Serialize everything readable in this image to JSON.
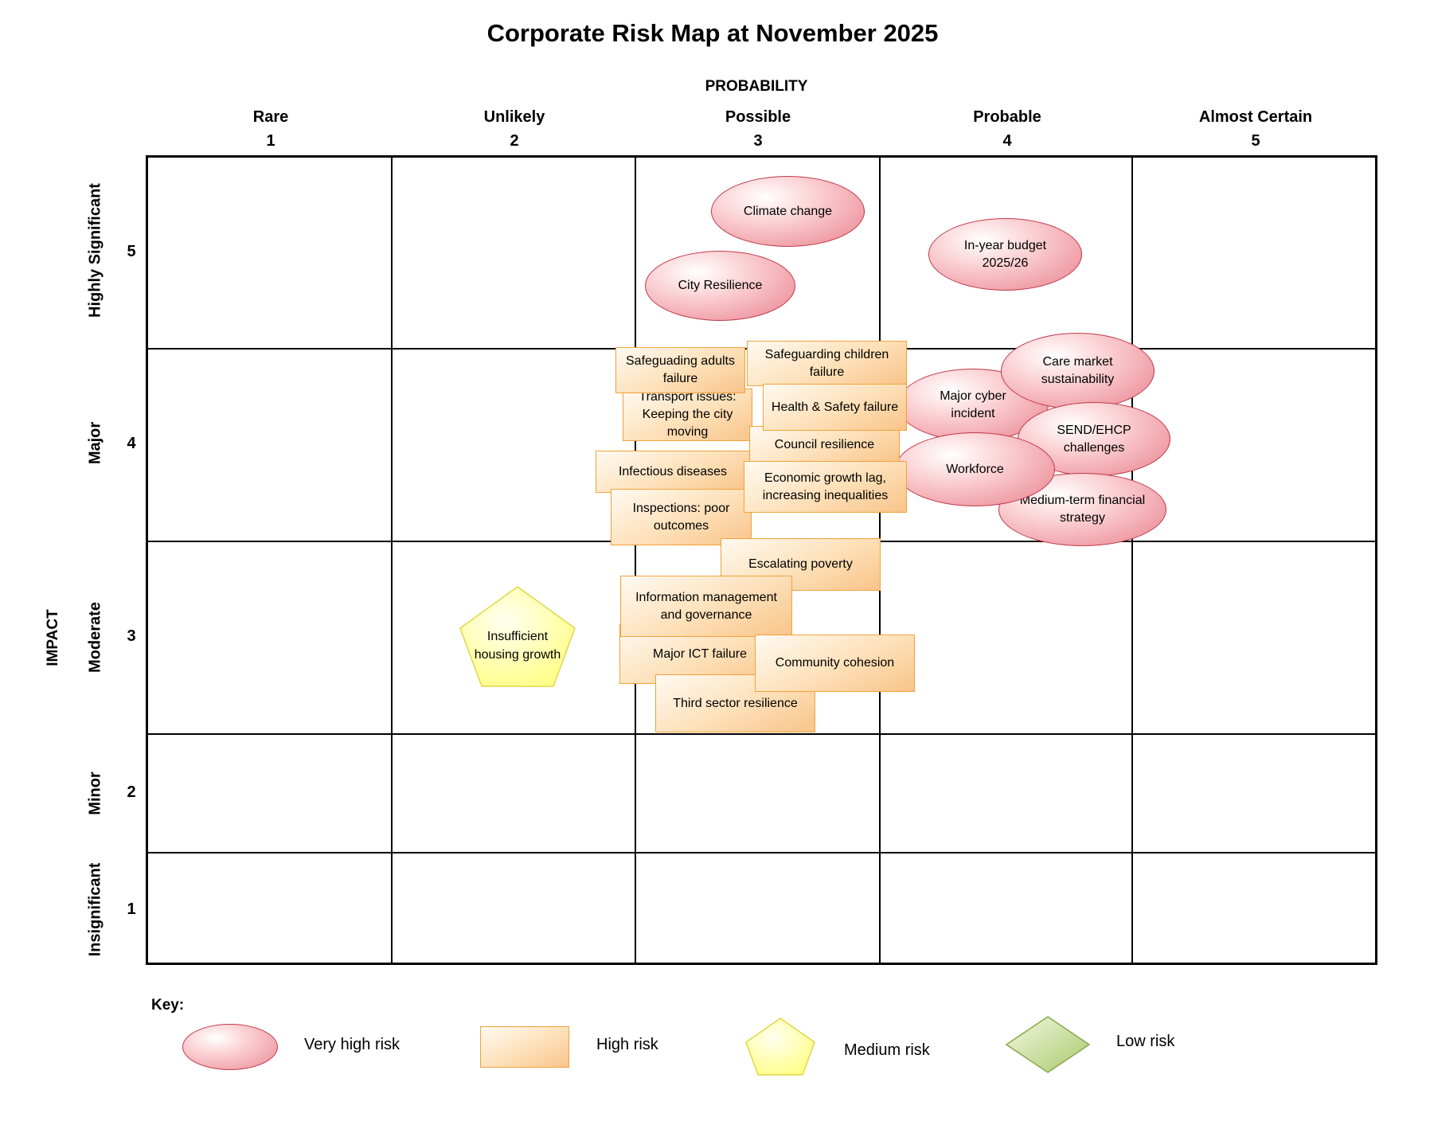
{
  "title": "Corporate Risk Map at November 2025",
  "axis": {
    "probability_label": "PROBABILITY",
    "impact_label": "IMPACT",
    "columns": [
      {
        "name": "Rare",
        "num": "1"
      },
      {
        "name": "Unlikely",
        "num": "2"
      },
      {
        "name": "Possible",
        "num": "3"
      },
      {
        "name": "Probable",
        "num": "4"
      },
      {
        "name": "Almost Certain",
        "num": "5"
      }
    ],
    "rows": [
      {
        "name": "Highly Significant",
        "num": "5"
      },
      {
        "name": "Major",
        "num": "4"
      },
      {
        "name": "Moderate",
        "num": "3"
      },
      {
        "name": "Minor",
        "num": "2"
      },
      {
        "name": "Insignificant",
        "num": "1"
      }
    ]
  },
  "risks": {
    "climate_change": "Climate change",
    "in_year_budget": "In-year budget 2025/26",
    "city_resilience": "City Resilience",
    "safeguarding_adults": "Safeguading adults failure",
    "safeguarding_children": "Safeguarding children failure",
    "major_cyber": "Major cyber incident",
    "care_market": "Care market sustainability",
    "transport": "Transport issues: Keeping the city moving",
    "health_safety": "Health & Safety failure",
    "send_ehcp": "SEND/EHCP challenges",
    "council_resilience": "Council resilience",
    "infectious": "Infectious diseases",
    "workforce": "Workforce",
    "economic_growth": "Economic growth lag, increasing inequalities",
    "inspections": "Inspections: poor outcomes",
    "medium_term": "Medium-term financial strategy",
    "escalating_poverty": "Escalating poverty",
    "info_mgmt": "Information management and governance",
    "housing": "Insufficient housing growth",
    "major_ict": "Major ICT failure",
    "community_cohesion": "Community cohesion",
    "third_sector": "Third sector resilience"
  },
  "key": {
    "label": "Key:",
    "very_high": "Very high risk",
    "high": "High risk",
    "medium": "Medium risk",
    "low": "Low risk"
  },
  "colors": {
    "very_high": "#f0a0a8",
    "high": "#f9c48a",
    "medium": "#ffff99",
    "low": "#b5d27a"
  }
}
